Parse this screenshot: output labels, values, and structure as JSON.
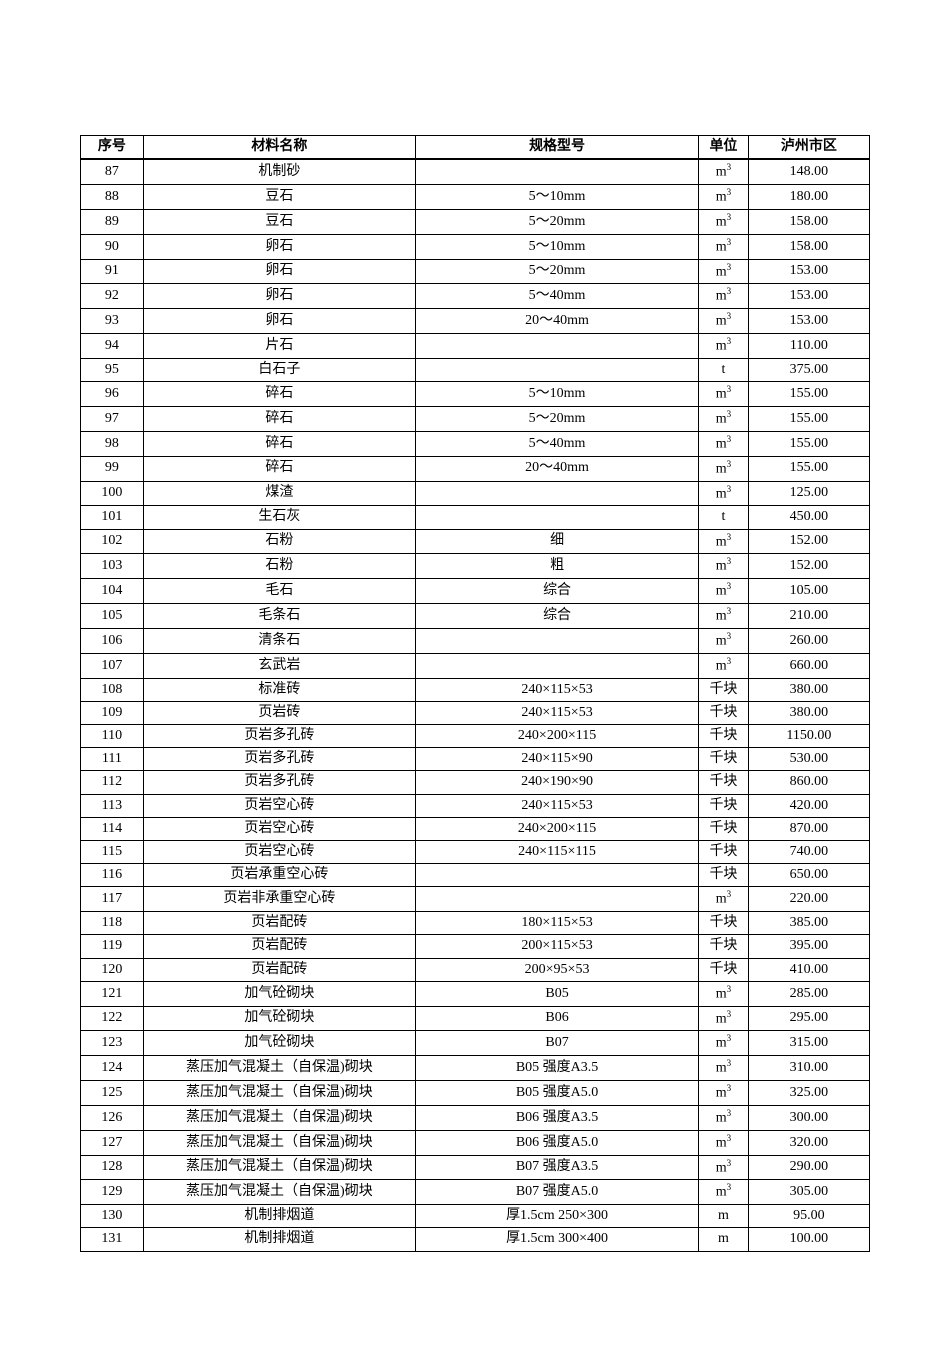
{
  "table": {
    "headers": {
      "seq": "序号",
      "name": "材料名称",
      "spec": "规格型号",
      "unit": "单位",
      "price": "泸州市区"
    },
    "rows": [
      {
        "seq": "87",
        "name": "机制砂",
        "spec": "",
        "unit": "m³",
        "price": "148.00"
      },
      {
        "seq": "88",
        "name": "豆石",
        "spec": "5～10mm",
        "unit": "m³",
        "price": "180.00"
      },
      {
        "seq": "89",
        "name": "豆石",
        "spec": "5～20mm",
        "unit": "m³",
        "price": "158.00"
      },
      {
        "seq": "90",
        "name": "卵石",
        "spec": "5～10mm",
        "unit": "m³",
        "price": "158.00"
      },
      {
        "seq": "91",
        "name": "卵石",
        "spec": "5～20mm",
        "unit": "m³",
        "price": "153.00"
      },
      {
        "seq": "92",
        "name": "卵石",
        "spec": "5～40mm",
        "unit": "m³",
        "price": "153.00"
      },
      {
        "seq": "93",
        "name": "卵石",
        "spec": "20～40mm",
        "unit": "m³",
        "price": "153.00"
      },
      {
        "seq": "94",
        "name": "片石",
        "spec": "",
        "unit": "m³",
        "price": "110.00"
      },
      {
        "seq": "95",
        "name": "白石子",
        "spec": "",
        "unit": "t",
        "price": "375.00"
      },
      {
        "seq": "96",
        "name": "碎石",
        "spec": "5～10mm",
        "unit": "m³",
        "price": "155.00"
      },
      {
        "seq": "97",
        "name": "碎石",
        "spec": "5～20mm",
        "unit": "m³",
        "price": "155.00"
      },
      {
        "seq": "98",
        "name": "碎石",
        "spec": "5～40mm",
        "unit": "m³",
        "price": "155.00"
      },
      {
        "seq": "99",
        "name": "碎石",
        "spec": "20～40mm",
        "unit": "m³",
        "price": "155.00"
      },
      {
        "seq": "100",
        "name": "煤渣",
        "spec": "",
        "unit": "m³",
        "price": "125.00"
      },
      {
        "seq": "101",
        "name": "生石灰",
        "spec": "",
        "unit": "t",
        "price": "450.00"
      },
      {
        "seq": "102",
        "name": "石粉",
        "spec": "细",
        "unit": "m³",
        "price": "152.00"
      },
      {
        "seq": "103",
        "name": "石粉",
        "spec": "粗",
        "unit": "m³",
        "price": "152.00"
      },
      {
        "seq": "104",
        "name": "毛石",
        "spec": "综合",
        "unit": "m³",
        "price": "105.00"
      },
      {
        "seq": "105",
        "name": "毛条石",
        "spec": "综合",
        "unit": "m³",
        "price": "210.00"
      },
      {
        "seq": "106",
        "name": "清条石",
        "spec": "",
        "unit": "m³",
        "price": "260.00"
      },
      {
        "seq": "107",
        "name": "玄武岩",
        "spec": "",
        "unit": "m³",
        "price": "660.00"
      },
      {
        "seq": "108",
        "name": "标准砖",
        "spec": "240×115×53",
        "unit": "千块",
        "price": "380.00"
      },
      {
        "seq": "109",
        "name": "页岩砖",
        "spec": "240×115×53",
        "unit": "千块",
        "price": "380.00"
      },
      {
        "seq": "110",
        "name": "页岩多孔砖",
        "spec": "240×200×115",
        "unit": "千块",
        "price": "1150.00"
      },
      {
        "seq": "111",
        "name": "页岩多孔砖",
        "spec": "240×115×90",
        "unit": "千块",
        "price": "530.00"
      },
      {
        "seq": "112",
        "name": "页岩多孔砖",
        "spec": "240×190×90",
        "unit": "千块",
        "price": "860.00"
      },
      {
        "seq": "113",
        "name": "页岩空心砖",
        "spec": "240×115×53",
        "unit": "千块",
        "price": "420.00"
      },
      {
        "seq": "114",
        "name": "页岩空心砖",
        "spec": "240×200×115",
        "unit": "千块",
        "price": "870.00"
      },
      {
        "seq": "115",
        "name": "页岩空心砖",
        "spec": "240×115×115",
        "unit": "千块",
        "price": "740.00"
      },
      {
        "seq": "116",
        "name": "页岩承重空心砖",
        "spec": "",
        "unit": "千块",
        "price": "650.00"
      },
      {
        "seq": "117",
        "name": "页岩非承重空心砖",
        "spec": "",
        "unit": "m³",
        "price": "220.00"
      },
      {
        "seq": "118",
        "name": "页岩配砖",
        "spec": "180×115×53",
        "unit": "千块",
        "price": "385.00"
      },
      {
        "seq": "119",
        "name": "页岩配砖",
        "spec": "200×115×53",
        "unit": "千块",
        "price": "395.00"
      },
      {
        "seq": "120",
        "name": "页岩配砖",
        "spec": "200×95×53",
        "unit": "千块",
        "price": "410.00"
      },
      {
        "seq": "121",
        "name": "加气砼砌块",
        "spec": "B05",
        "unit": "m³",
        "price": "285.00"
      },
      {
        "seq": "122",
        "name": "加气砼砌块",
        "spec": "B06",
        "unit": "m³",
        "price": "295.00"
      },
      {
        "seq": "123",
        "name": "加气砼砌块",
        "spec": "B07",
        "unit": "m³",
        "price": "315.00"
      },
      {
        "seq": "124",
        "name": "蒸压加气混凝土（自保温)砌块",
        "spec": "B05 强度A3.5",
        "unit": "m³",
        "price": "310.00"
      },
      {
        "seq": "125",
        "name": "蒸压加气混凝土（自保温)砌块",
        "spec": "B05 强度A5.0",
        "unit": "m³",
        "price": "325.00"
      },
      {
        "seq": "126",
        "name": "蒸压加气混凝土（自保温)砌块",
        "spec": "B06 强度A3.5",
        "unit": "m³",
        "price": "300.00"
      },
      {
        "seq": "127",
        "name": "蒸压加气混凝土（自保温)砌块",
        "spec": "B06 强度A5.0",
        "unit": "m³",
        "price": "320.00"
      },
      {
        "seq": "128",
        "name": "蒸压加气混凝土（自保温)砌块",
        "spec": "B07 强度A3.5",
        "unit": "m³",
        "price": "290.00"
      },
      {
        "seq": "129",
        "name": "蒸压加气混凝土（自保温)砌块",
        "spec": "B07 强度A5.0",
        "unit": "m³",
        "price": "305.00"
      },
      {
        "seq": "130",
        "name": "机制排烟道",
        "spec": "厚1.5cm 250×300",
        "unit": "m",
        "price": "95.00"
      },
      {
        "seq": "131",
        "name": "机制排烟道",
        "spec": "厚1.5cm 300×400",
        "unit": "m",
        "price": "100.00"
      }
    ]
  },
  "styling": {
    "background_color": "#ffffff",
    "border_color": "#000000",
    "font_family": "SimSun, 宋体, serif",
    "header_fontsize": 14,
    "cell_fontsize": 14,
    "col_widths": {
      "seq": 57,
      "name": 247,
      "spec": 257,
      "unit": 45,
      "price": 110
    }
  }
}
